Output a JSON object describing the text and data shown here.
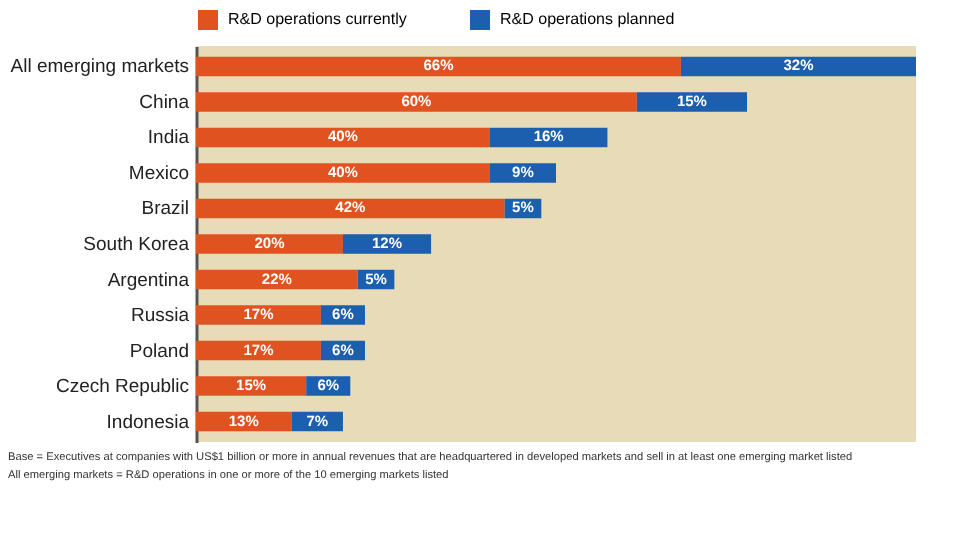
{
  "chart_data": {
    "type": "bar",
    "orientation": "horizontal",
    "stacked": true,
    "legend": "top",
    "categories": [
      "All emerging markets",
      "China",
      "India",
      "Mexico",
      "Brazil",
      "South Korea",
      "Argentina",
      "Russia",
      "Poland",
      "Czech Republic",
      "Indonesia"
    ],
    "series": [
      {
        "name": "R&D operations currently",
        "color": "#e0521f",
        "values": [
          66,
          60,
          40,
          40,
          42,
          20,
          22,
          17,
          17,
          15,
          13
        ],
        "value_labels": [
          "66%",
          "60%",
          "40%",
          "40%",
          "42%",
          "20%",
          "22%",
          "17%",
          "17%",
          "15%",
          "13%"
        ]
      },
      {
        "name": "R&D operations planned",
        "color": "#1b5fae",
        "values": [
          32,
          15,
          16,
          9,
          5,
          12,
          5,
          6,
          6,
          6,
          7
        ],
        "value_labels": [
          "32%",
          "15%",
          "16%",
          "9%",
          "5%",
          "12%",
          "5%",
          "6%",
          "6%",
          "6%",
          "7%"
        ]
      }
    ],
    "annotations": [
      "Base = Executives at companies with US$1 billion or more in annual revenues that are headquartered in developed markets and sell in at least one emerging market listed",
      "All emerging markets = R&D operations in one or more of the 10 emerging markets listed"
    ]
  }
}
